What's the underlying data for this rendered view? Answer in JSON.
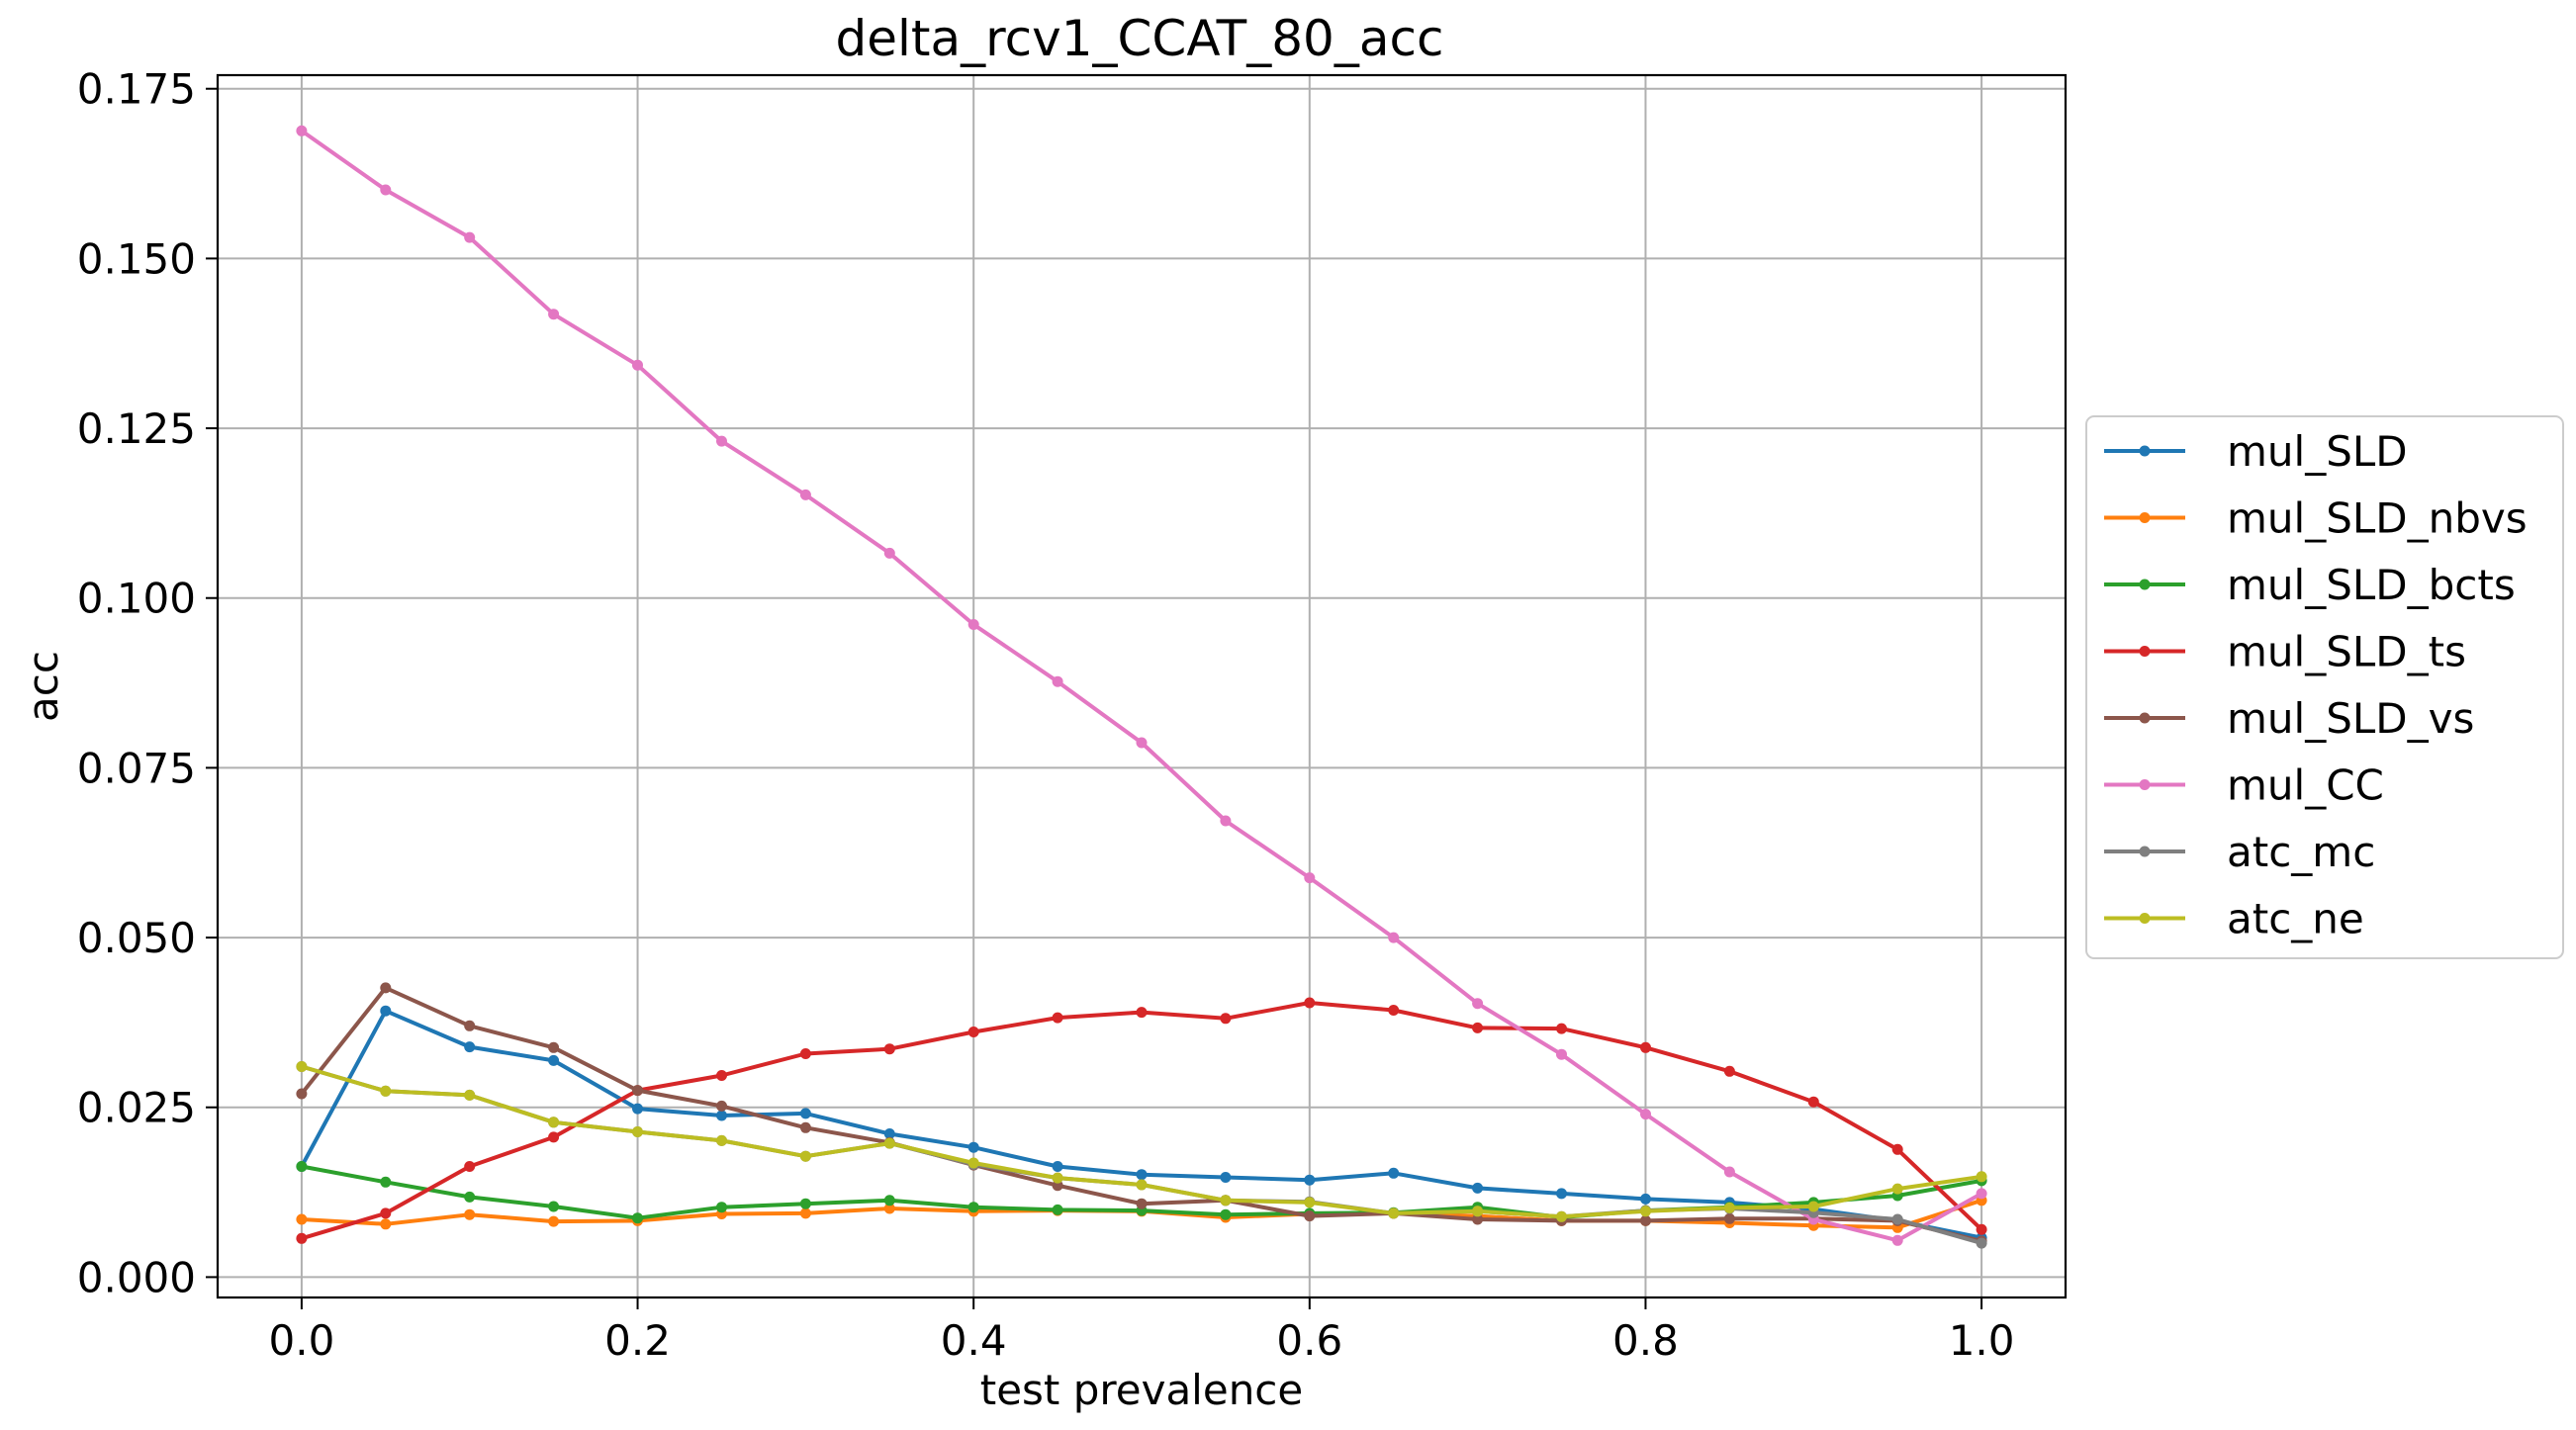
{
  "chart_data": {
    "type": "line",
    "title": "delta_rcv1_CCAT_80_acc",
    "xlabel": "test prevalence",
    "ylabel": "acc",
    "xlim": [
      -0.05,
      1.05
    ],
    "ylim": [
      -0.003,
      0.177
    ],
    "grid": true,
    "legend_placement": "right, outside",
    "x": [
      0.0,
      0.05,
      0.1,
      0.15,
      0.2,
      0.25,
      0.3,
      0.35,
      0.4,
      0.45,
      0.5,
      0.55,
      0.6,
      0.65,
      0.7,
      0.75,
      0.8,
      0.85,
      0.9,
      0.95,
      1.0
    ],
    "x_ticks": [
      {
        "value": 0.0,
        "label": "0.0"
      },
      {
        "value": 0.2,
        "label": "0.2"
      },
      {
        "value": 0.4,
        "label": "0.4"
      },
      {
        "value": 0.6,
        "label": "0.6"
      },
      {
        "value": 0.8,
        "label": "0.8"
      },
      {
        "value": 1.0,
        "label": "1.0"
      }
    ],
    "y_ticks": [
      {
        "value": 0.0,
        "label": "0.000"
      },
      {
        "value": 0.025,
        "label": "0.025"
      },
      {
        "value": 0.05,
        "label": "0.050"
      },
      {
        "value": 0.075,
        "label": "0.075"
      },
      {
        "value": 0.1,
        "label": "0.100"
      },
      {
        "value": 0.125,
        "label": "0.125"
      },
      {
        "value": 0.15,
        "label": "0.150"
      },
      {
        "value": 0.175,
        "label": "0.175"
      }
    ],
    "series": [
      {
        "name": "mul_SLD",
        "color": "#1f77b4",
        "values": [
          0.0163,
          0.0392,
          0.0339,
          0.0319,
          0.0248,
          0.0238,
          0.0241,
          0.0211,
          0.0191,
          0.0163,
          0.0151,
          0.0147,
          0.0143,
          0.0153,
          0.0131,
          0.0123,
          0.0115,
          0.011,
          0.01,
          0.0083,
          0.0058
        ]
      },
      {
        "name": "mul_SLD_nbvs",
        "color": "#ff7f0e",
        "values": [
          0.0085,
          0.0078,
          0.0092,
          0.0082,
          0.0083,
          0.0093,
          0.0094,
          0.0101,
          0.0097,
          0.0098,
          0.0097,
          0.0088,
          0.0093,
          0.0094,
          0.009,
          0.0083,
          0.0083,
          0.008,
          0.0076,
          0.0073,
          0.0113
        ]
      },
      {
        "name": "mul_SLD_bcts",
        "color": "#2ca02c",
        "values": [
          0.0163,
          0.014,
          0.0118,
          0.0104,
          0.0087,
          0.0103,
          0.0108,
          0.0113,
          0.0103,
          0.0099,
          0.0098,
          0.0092,
          0.0094,
          0.0095,
          0.0103,
          0.0088,
          0.0098,
          0.0103,
          0.011,
          0.012,
          0.0142
        ]
      },
      {
        "name": "mul_SLD_ts",
        "color": "#d62728",
        "values": [
          0.0057,
          0.0094,
          0.0163,
          0.0206,
          0.0275,
          0.0297,
          0.0329,
          0.0336,
          0.0361,
          0.0382,
          0.039,
          0.0381,
          0.0404,
          0.0393,
          0.0367,
          0.0366,
          0.0338,
          0.0303,
          0.0258,
          0.0188,
          0.007
        ]
      },
      {
        "name": "mul_SLD_vs",
        "color": "#8c564b",
        "values": [
          0.027,
          0.0426,
          0.037,
          0.0338,
          0.0275,
          0.0252,
          0.022,
          0.0198,
          0.0165,
          0.0135,
          0.0108,
          0.0113,
          0.009,
          0.0094,
          0.0085,
          0.0083,
          0.0083,
          0.0086,
          0.0086,
          0.0083,
          0.0053
        ]
      },
      {
        "name": "mul_CC",
        "color": "#e377c2",
        "values": [
          0.1688,
          0.1601,
          0.1531,
          0.1418,
          0.1343,
          0.1231,
          0.1152,
          0.1066,
          0.0961,
          0.0877,
          0.0787,
          0.0672,
          0.0588,
          0.05,
          0.0403,
          0.0328,
          0.024,
          0.0155,
          0.0085,
          0.0054,
          0.0123
        ]
      },
      {
        "name": "atc_mc",
        "color": "#7f7f7f",
        "values": [
          0.031,
          0.0274,
          0.0268,
          0.0228,
          0.0214,
          0.0201,
          0.0178,
          0.0197,
          0.0166,
          0.0146,
          0.0136,
          0.0113,
          0.0111,
          0.0094,
          0.0097,
          0.0089,
          0.0098,
          0.0101,
          0.0095,
          0.0085,
          0.005
        ]
      },
      {
        "name": "atc_ne",
        "color": "#bcbd22",
        "values": [
          0.031,
          0.0274,
          0.0268,
          0.0228,
          0.0214,
          0.0201,
          0.0178,
          0.0197,
          0.0168,
          0.0146,
          0.0136,
          0.0113,
          0.011,
          0.0094,
          0.0097,
          0.0089,
          0.0097,
          0.0102,
          0.0104,
          0.013,
          0.0148
        ]
      }
    ]
  }
}
